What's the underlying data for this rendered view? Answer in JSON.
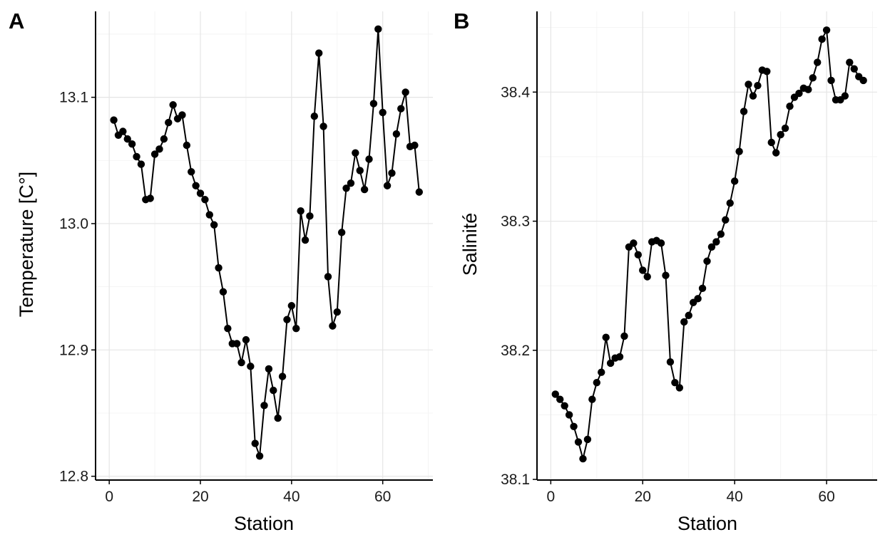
{
  "chart_data": [
    {
      "type": "line",
      "panel": "A",
      "xlabel": "Station",
      "ylabel": "Temperature [C°]",
      "xlim": [
        -3,
        71
      ],
      "ylim": [
        12.797,
        13.168
      ],
      "xticks": [
        0,
        20,
        40,
        60
      ],
      "xtick_labels": [
        "0",
        "20",
        "40",
        "60"
      ],
      "yticks": [
        12.8,
        12.9,
        13.0,
        13.1
      ],
      "ytick_labels": [
        "12.8",
        "12.9",
        "13.0",
        "13.1"
      ],
      "grid": true,
      "x": [
        1,
        2,
        3,
        4,
        5,
        6,
        7,
        8,
        9,
        10,
        11,
        12,
        13,
        14,
        15,
        16,
        17,
        18,
        19,
        20,
        21,
        22,
        23,
        24,
        25,
        26,
        27,
        28,
        29,
        30,
        31,
        32,
        33,
        34,
        35,
        36,
        37,
        38,
        39,
        40,
        41,
        42,
        43,
        44,
        45,
        46,
        47,
        48,
        49,
        50,
        51,
        52,
        53,
        54,
        55,
        56,
        57,
        58,
        59,
        60,
        61,
        62,
        63,
        64,
        65,
        66,
        67,
        68
      ],
      "y": [
        13.082,
        13.07,
        13.073,
        13.067,
        13.063,
        13.053,
        13.047,
        13.019,
        13.02,
        13.055,
        13.059,
        13.067,
        13.08,
        13.094,
        13.083,
        13.086,
        13.062,
        13.041,
        13.03,
        13.024,
        13.019,
        13.007,
        12.999,
        12.965,
        12.946,
        12.917,
        12.905,
        12.905,
        12.89,
        12.908,
        12.887,
        12.826,
        12.816,
        12.856,
        12.885,
        12.868,
        12.846,
        12.879,
        12.924,
        12.935,
        12.917,
        13.01,
        12.987,
        13.006,
        13.085,
        13.135,
        13.077,
        12.958,
        12.919,
        12.93,
        12.993,
        13.028,
        13.032,
        13.056,
        13.042,
        13.027,
        13.051,
        13.095,
        13.154,
        13.088,
        13.03,
        13.04,
        13.071,
        13.091,
        13.104,
        13.061,
        13.062,
        13.025
      ]
    },
    {
      "type": "line",
      "panel": "B",
      "xlabel": "Station",
      "ylabel": "Salinité",
      "xlim": [
        -3,
        71
      ],
      "ylim": [
        38.0995,
        38.4625
      ],
      "xticks": [
        0,
        20,
        40,
        60
      ],
      "xtick_labels": [
        "0",
        "20",
        "40",
        "60"
      ],
      "yticks": [
        38.1,
        38.2,
        38.3,
        38.4
      ],
      "ytick_labels": [
        "38.1",
        "38.2",
        "38.3",
        "38.4"
      ],
      "grid": true,
      "x": [
        1,
        2,
        3,
        4,
        5,
        6,
        7,
        8,
        9,
        10,
        11,
        12,
        13,
        14,
        15,
        16,
        17,
        18,
        19,
        20,
        21,
        22,
        23,
        24,
        25,
        26,
        27,
        28,
        29,
        30,
        31,
        32,
        33,
        34,
        35,
        36,
        37,
        38,
        39,
        40,
        41,
        42,
        43,
        44,
        45,
        46,
        47,
        48,
        49,
        50,
        51,
        52,
        53,
        54,
        55,
        56,
        57,
        58,
        59,
        60,
        61,
        62,
        63,
        64,
        65,
        66,
        67,
        68
      ],
      "y": [
        38.166,
        38.162,
        38.157,
        38.15,
        38.141,
        38.129,
        38.116,
        38.131,
        38.162,
        38.175,
        38.183,
        38.21,
        38.19,
        38.194,
        38.195,
        38.211,
        38.28,
        38.283,
        38.274,
        38.262,
        38.257,
        38.284,
        38.285,
        38.283,
        38.258,
        38.191,
        38.175,
        38.171,
        38.222,
        38.227,
        38.237,
        38.24,
        38.248,
        38.269,
        38.28,
        38.284,
        38.29,
        38.301,
        38.314,
        38.331,
        38.354,
        38.385,
        38.406,
        38.397,
        38.405,
        38.417,
        38.416,
        38.361,
        38.353,
        38.367,
        38.372,
        38.389,
        38.396,
        38.399,
        38.403,
        38.402,
        38.411,
        38.423,
        38.441,
        38.448,
        38.409,
        38.394,
        38.394,
        38.397,
        38.423,
        38.418,
        38.412,
        38.409
      ]
    }
  ]
}
